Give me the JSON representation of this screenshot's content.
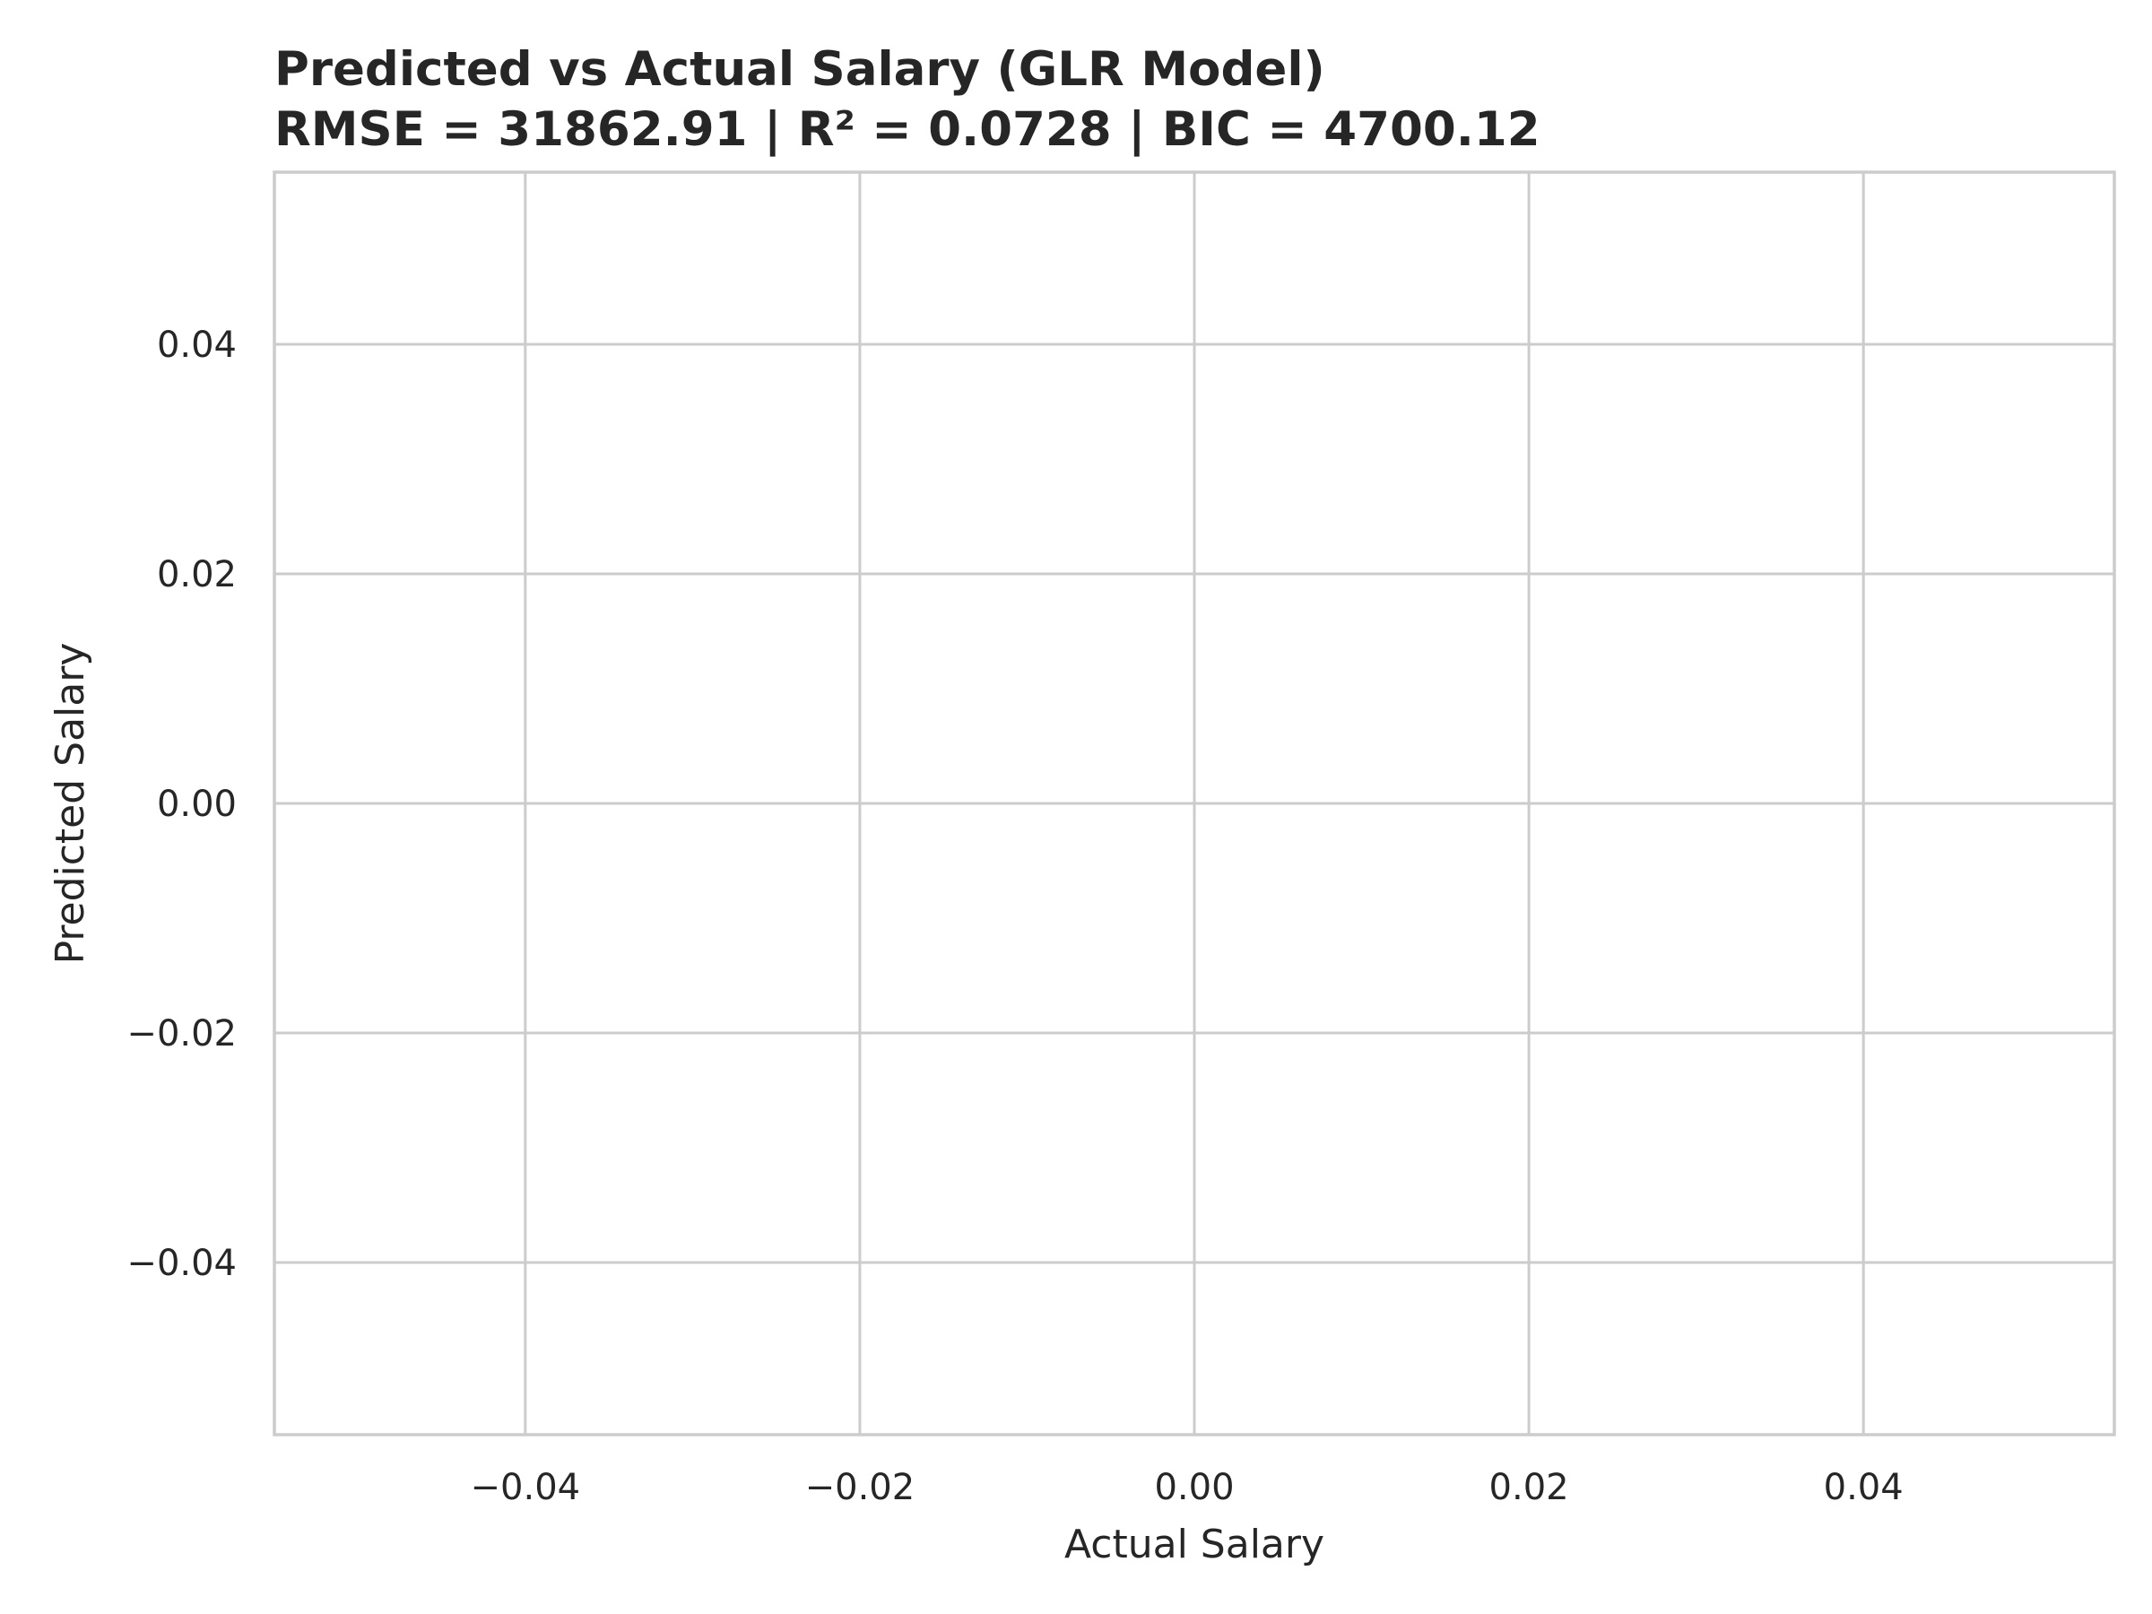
{
  "chart_data": {
    "type": "scatter",
    "title": "Predicted vs Actual Salary (GLR Model)",
    "subtitle": "RMSE = 31862.91 | R² = 0.0728 | BIC = 4700.12",
    "xlabel": "Actual Salary",
    "ylabel": "Predicted Salary",
    "xlim": [
      -0.055,
      0.055
    ],
    "ylim": [
      -0.055,
      0.055
    ],
    "xticks": [
      -0.04,
      -0.02,
      0.0,
      0.02,
      0.04
    ],
    "yticks": [
      -0.04,
      -0.02,
      0.0,
      0.02,
      0.04
    ],
    "xtick_labels": [
      "−0.04",
      "−0.02",
      "0.00",
      "0.02",
      "0.04"
    ],
    "ytick_labels": [
      "−0.04",
      "−0.02",
      "0.00",
      "0.02",
      "0.04"
    ],
    "grid": true,
    "x": [],
    "y": [],
    "colors": {
      "grid": "#cccccc",
      "text": "#262626",
      "background": "#ffffff"
    }
  }
}
